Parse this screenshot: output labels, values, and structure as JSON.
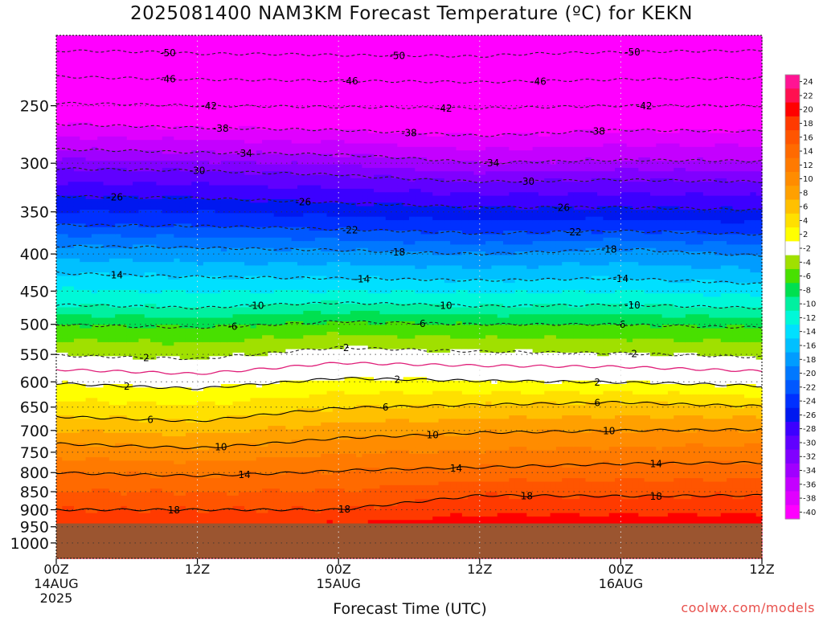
{
  "header": {
    "title": "2025081400 NAM3KM Forecast Temperature (ºC) for KEKN"
  },
  "footer": {
    "credit": "coolwx.com/models"
  },
  "chart_data": {
    "type": "heatmap",
    "title": "2025081400 NAM3KM Forecast Temperature (ºC) for KEKN",
    "xlabel": "Forecast Time (UTC)",
    "ylabel": "",
    "y_scale": "log-pressure",
    "ylim": [
      1050,
      200
    ],
    "xlim": [
      0,
      60
    ],
    "x_ticks": [
      {
        "value": 0,
        "lines": [
          "00Z",
          "14AUG",
          "2025"
        ]
      },
      {
        "value": 12,
        "lines": [
          "12Z"
        ]
      },
      {
        "value": 24,
        "lines": [
          "00Z",
          "15AUG"
        ]
      },
      {
        "value": 36,
        "lines": [
          "12Z"
        ]
      },
      {
        "value": 48,
        "lines": [
          "00Z",
          "16AUG"
        ]
      },
      {
        "value": 60,
        "lines": [
          "12Z"
        ]
      }
    ],
    "y_ticks": [
      250,
      300,
      350,
      400,
      450,
      500,
      550,
      600,
      650,
      700,
      750,
      800,
      850,
      900,
      950,
      1000
    ],
    "ground_pressure": 940,
    "ground_color": "#9b5530",
    "grid": true,
    "colorbar": {
      "labels": [
        "24",
        "22",
        "20",
        "18",
        "16",
        "14",
        "12",
        "10",
        "8",
        "6",
        "4",
        "2",
        "-2",
        "-4",
        "-6",
        "-8",
        "-10",
        "-12",
        "-14",
        "-16",
        "-18",
        "-20",
        "-22",
        "-24",
        "-26",
        "-28",
        "-30",
        "-32",
        "-34",
        "-36",
        "-38",
        "-40"
      ],
      "colors": [
        "#ff1493",
        "#ff1050",
        "#ff0000",
        "#ff3a00",
        "#ff5500",
        "#ff6a00",
        "#ff7a00",
        "#ff8c00",
        "#ffa000",
        "#ffc000",
        "#ffe000",
        "#ffff00",
        "#ffffff",
        "#a0e000",
        "#48e000",
        "#00e050",
        "#00f0a0",
        "#00f8d8",
        "#00e0ff",
        "#00c0ff",
        "#009cff",
        "#0078ff",
        "#0058ff",
        "#0030ff",
        "#0018f0",
        "#3c00ff",
        "#6000ff",
        "#8000ff",
        "#a000ff",
        "#c400ff",
        "#e000ff",
        "#ff00ff"
      ],
      "position": "right"
    },
    "profiles": [
      {
        "time": 0,
        "temps": [
          {
            "p": 1000,
            "t": 22
          },
          {
            "p": 900,
            "t": 18
          },
          {
            "p": 800,
            "t": 14
          },
          {
            "p": 730,
            "t": 10
          },
          {
            "p": 670,
            "t": 6
          },
          {
            "p": 603,
            "t": 2
          },
          {
            "p": 577,
            "t": 0
          },
          {
            "p": 552,
            "t": -2
          },
          {
            "p": 500,
            "t": -6
          },
          {
            "p": 470,
            "t": -10
          },
          {
            "p": 425,
            "t": -14
          },
          {
            "p": 390,
            "t": -18
          },
          {
            "p": 365,
            "t": -22
          },
          {
            "p": 333,
            "t": -26
          },
          {
            "p": 305,
            "t": -30
          },
          {
            "p": 287,
            "t": -34
          },
          {
            "p": 265,
            "t": -38
          },
          {
            "p": 248,
            "t": -42
          },
          {
            "p": 228,
            "t": -46
          },
          {
            "p": 210,
            "t": -50
          },
          {
            "p": 200,
            "t": -52
          }
        ]
      },
      {
        "time": 12,
        "temps": [
          {
            "p": 1000,
            "t": 22
          },
          {
            "p": 900,
            "t": 18
          },
          {
            "p": 808,
            "t": 14
          },
          {
            "p": 740,
            "t": 10
          },
          {
            "p": 680,
            "t": 6
          },
          {
            "p": 613,
            "t": 2
          },
          {
            "p": 585,
            "t": 0
          },
          {
            "p": 558,
            "t": -2
          },
          {
            "p": 505,
            "t": -6
          },
          {
            "p": 475,
            "t": -10
          },
          {
            "p": 430,
            "t": -14
          },
          {
            "p": 392,
            "t": -18
          },
          {
            "p": 366,
            "t": -22
          },
          {
            "p": 335,
            "t": -26
          },
          {
            "p": 307,
            "t": -30
          },
          {
            "p": 290,
            "t": -34
          },
          {
            "p": 268,
            "t": -38
          },
          {
            "p": 250,
            "t": -42
          },
          {
            "p": 230,
            "t": -46
          },
          {
            "p": 212,
            "t": -50
          },
          {
            "p": 200,
            "t": -51
          }
        ]
      },
      {
        "time": 24,
        "temps": [
          {
            "p": 1000,
            "t": 23
          },
          {
            "p": 900,
            "t": 18
          },
          {
            "p": 795,
            "t": 14
          },
          {
            "p": 717,
            "t": 10
          },
          {
            "p": 652,
            "t": 6
          },
          {
            "p": 593,
            "t": 2
          },
          {
            "p": 565,
            "t": 0
          },
          {
            "p": 538,
            "t": -2
          },
          {
            "p": 495,
            "t": -6
          },
          {
            "p": 467,
            "t": -10
          },
          {
            "p": 432,
            "t": -14
          },
          {
            "p": 395,
            "t": -18
          },
          {
            "p": 370,
            "t": -22
          },
          {
            "p": 340,
            "t": -26
          },
          {
            "p": 311,
            "t": -30
          },
          {
            "p": 292,
            "t": -34
          },
          {
            "p": 270,
            "t": -38
          },
          {
            "p": 251,
            "t": -42
          },
          {
            "p": 231,
            "t": -46
          },
          {
            "p": 213,
            "t": -50
          },
          {
            "p": 200,
            "t": -51
          }
        ]
      },
      {
        "time": 36,
        "temps": [
          {
            "p": 1000,
            "t": 23
          },
          {
            "p": 860,
            "t": 18
          },
          {
            "p": 787,
            "t": 14
          },
          {
            "p": 705,
            "t": 10
          },
          {
            "p": 645,
            "t": 6
          },
          {
            "p": 598,
            "t": 2
          },
          {
            "p": 570,
            "t": 0
          },
          {
            "p": 545,
            "t": -2
          },
          {
            "p": 500,
            "t": -6
          },
          {
            "p": 472,
            "t": -10
          },
          {
            "p": 435,
            "t": -14
          },
          {
            "p": 400,
            "t": -18
          },
          {
            "p": 375,
            "t": -22
          },
          {
            "p": 345,
            "t": -26
          },
          {
            "p": 318,
            "t": -30
          },
          {
            "p": 300,
            "t": -34
          },
          {
            "p": 275,
            "t": -38
          },
          {
            "p": 252,
            "t": -42
          },
          {
            "p": 232,
            "t": -46
          },
          {
            "p": 214,
            "t": -50
          },
          {
            "p": 200,
            "t": -51
          }
        ]
      },
      {
        "time": 48,
        "temps": [
          {
            "p": 1000,
            "t": 23
          },
          {
            "p": 862,
            "t": 18
          },
          {
            "p": 778,
            "t": 14
          },
          {
            "p": 700,
            "t": 10
          },
          {
            "p": 640,
            "t": 6
          },
          {
            "p": 601,
            "t": 2
          },
          {
            "p": 572,
            "t": 0
          },
          {
            "p": 548,
            "t": -2
          },
          {
            "p": 500,
            "t": -6
          },
          {
            "p": 470,
            "t": -10
          },
          {
            "p": 432,
            "t": -14
          },
          {
            "p": 393,
            "t": -18
          },
          {
            "p": 372,
            "t": -22
          },
          {
            "p": 345,
            "t": -26
          },
          {
            "p": 316,
            "t": -30
          },
          {
            "p": 297,
            "t": -34
          },
          {
            "p": 270,
            "t": -38
          },
          {
            "p": 250,
            "t": -42
          },
          {
            "p": 230,
            "t": -46
          },
          {
            "p": 211,
            "t": -50
          },
          {
            "p": 200,
            "t": -51
          }
        ]
      },
      {
        "time": 60,
        "temps": [
          {
            "p": 1000,
            "t": 23
          },
          {
            "p": 860,
            "t": 18
          },
          {
            "p": 775,
            "t": 14
          },
          {
            "p": 698,
            "t": 10
          },
          {
            "p": 648,
            "t": 6
          },
          {
            "p": 608,
            "t": 2
          },
          {
            "p": 580,
            "t": 0
          },
          {
            "p": 555,
            "t": -2
          },
          {
            "p": 505,
            "t": -6
          },
          {
            "p": 475,
            "t": -10
          },
          {
            "p": 440,
            "t": -14
          },
          {
            "p": 402,
            "t": -18
          },
          {
            "p": 376,
            "t": -22
          },
          {
            "p": 348,
            "t": -26
          },
          {
            "p": 318,
            "t": -30
          },
          {
            "p": 298,
            "t": -34
          },
          {
            "p": 271,
            "t": -38
          },
          {
            "p": 250,
            "t": -42
          },
          {
            "p": 229,
            "t": -46
          },
          {
            "p": 210,
            "t": -50
          },
          {
            "p": 200,
            "t": -51
          }
        ]
      }
    ],
    "contour_levels": [
      18,
      14,
      10,
      6,
      2,
      -2,
      -6,
      -10,
      -14,
      -18,
      -22,
      -26,
      -30,
      -34,
      -38,
      -42,
      -46,
      -50
    ],
    "zero_line_color": "#e0207a",
    "contour_labels": [
      {
        "level": 18,
        "time": 10
      },
      {
        "level": 18,
        "time": 24.5
      },
      {
        "level": 18,
        "time": 40
      },
      {
        "level": 18,
        "time": 51
      },
      {
        "level": 14,
        "time": 16
      },
      {
        "level": 14,
        "time": 34
      },
      {
        "level": 14,
        "time": 51
      },
      {
        "level": 10,
        "time": 14
      },
      {
        "level": 10,
        "time": 32
      },
      {
        "level": 10,
        "time": 47
      },
      {
        "level": 6,
        "time": 8
      },
      {
        "level": 6,
        "time": 28
      },
      {
        "level": 6,
        "time": 46
      },
      {
        "level": 2,
        "time": 6
      },
      {
        "level": 2,
        "time": 29
      },
      {
        "level": 2,
        "time": 46
      },
      {
        "level": -2,
        "time": 7.5
      },
      {
        "level": -2,
        "time": 24.5
      },
      {
        "level": -2,
        "time": 49
      },
      {
        "level": -6,
        "time": 15
      },
      {
        "level": -6,
        "time": 31
      },
      {
        "level": -6,
        "time": 48
      },
      {
        "level": -10,
        "time": 17
      },
      {
        "level": -10,
        "time": 33
      },
      {
        "level": -10,
        "time": 49
      },
      {
        "level": -14,
        "time": 5
      },
      {
        "level": -14,
        "time": 26
      },
      {
        "level": -14,
        "time": 48
      },
      {
        "level": -18,
        "time": 29
      },
      {
        "level": -18,
        "time": 47
      },
      {
        "level": -22,
        "time": 25
      },
      {
        "level": -22,
        "time": 44
      },
      {
        "level": -26,
        "time": 5
      },
      {
        "level": -26,
        "time": 21
      },
      {
        "level": -26,
        "time": 43
      },
      {
        "level": -30,
        "time": 12
      },
      {
        "level": -30,
        "time": 40
      },
      {
        "level": -34,
        "time": 16
      },
      {
        "level": -34,
        "time": 37
      },
      {
        "level": -38,
        "time": 14
      },
      {
        "level": -38,
        "time": 30
      },
      {
        "level": -38,
        "time": 46
      },
      {
        "level": -42,
        "time": 13
      },
      {
        "level": -42,
        "time": 33
      },
      {
        "level": -42,
        "time": 50
      },
      {
        "level": -46,
        "time": 9.5
      },
      {
        "level": -46,
        "time": 25
      },
      {
        "level": -46,
        "time": 41
      },
      {
        "level": -50,
        "time": 9.5
      },
      {
        "level": -50,
        "time": 29
      },
      {
        "level": -50,
        "time": 49
      }
    ]
  }
}
